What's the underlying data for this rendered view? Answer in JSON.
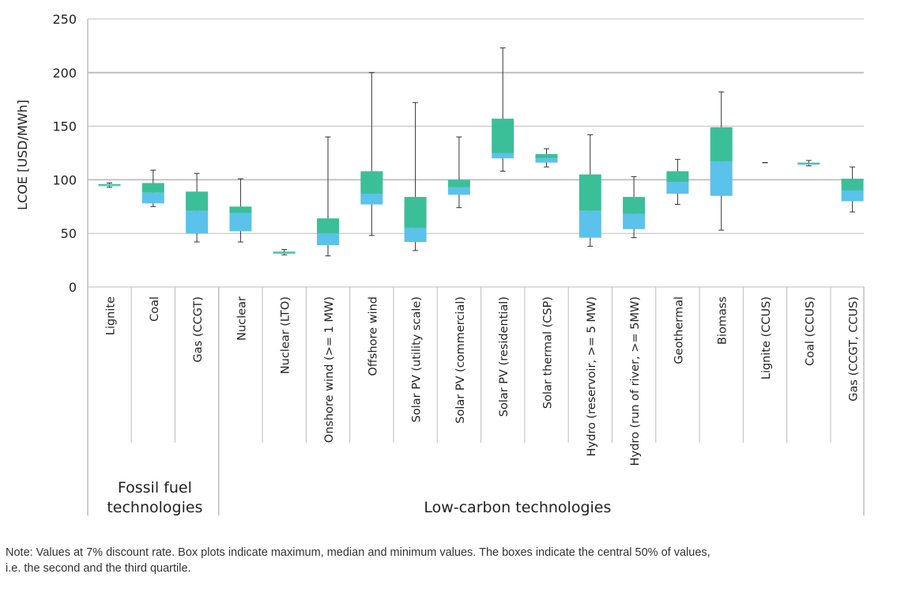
{
  "chart_data": {
    "type": "boxplot",
    "title": "",
    "ylabel": "LCOE [USD/MWh]",
    "xlabel": "",
    "ylim": [
      0,
      250
    ],
    "yticks": [
      0,
      50,
      100,
      150,
      200,
      250
    ],
    "grid": true,
    "categories": [
      "Lignite",
      "Coal",
      "Gas (CCGT)",
      "Nuclear",
      "Nuclear (LTO)",
      "Onshore wind (>= 1 MW)",
      "Offshore wind",
      "Solar PV (utility scale)",
      "Solar PV (commercial)",
      "Solar PV (residential)",
      "Solar thermal (CSP)",
      "Hydro (reservoir, >= 5 MW)",
      "Hydro (run of river, >= 5MW)",
      "Geothermal",
      "Biomass",
      "Lignite (CCUS)",
      "Coal (CCUS)",
      "Gas (CCGT, CCUS)"
    ],
    "series": [
      {
        "name": "Lignite",
        "min": 93,
        "q1": 94,
        "median": 95,
        "q3": 96,
        "max": 97
      },
      {
        "name": "Coal",
        "min": 75,
        "q1": 78,
        "median": 88,
        "q3": 97,
        "max": 109
      },
      {
        "name": "Gas (CCGT)",
        "min": 42,
        "q1": 50,
        "median": 71,
        "q3": 89,
        "max": 106
      },
      {
        "name": "Nuclear",
        "min": 42,
        "q1": 52,
        "median": 69,
        "q3": 75,
        "max": 101
      },
      {
        "name": "Nuclear (LTO)",
        "min": 30,
        "q1": 31,
        "median": 32,
        "q3": 33,
        "max": 35
      },
      {
        "name": "Onshore wind (>= 1 MW)",
        "min": 29,
        "q1": 39,
        "median": 50,
        "q3": 64,
        "max": 140
      },
      {
        "name": "Offshore wind",
        "min": 48,
        "q1": 77,
        "median": 87,
        "q3": 108,
        "max": 200
      },
      {
        "name": "Solar PV (utility scale)",
        "min": 34,
        "q1": 42,
        "median": 55,
        "q3": 84,
        "max": 172
      },
      {
        "name": "Solar PV (commercial)",
        "min": 74,
        "q1": 86,
        "median": 93,
        "q3": 100,
        "max": 140
      },
      {
        "name": "Solar PV (residential)",
        "min": 108,
        "q1": 120,
        "median": 125,
        "q3": 157,
        "max": 223
      },
      {
        "name": "Solar thermal (CSP)",
        "min": 112,
        "q1": 116,
        "median": 120,
        "q3": 124,
        "max": 129
      },
      {
        "name": "Hydro (reservoir, >= 5 MW)",
        "min": 38,
        "q1": 46,
        "median": 71,
        "q3": 105,
        "max": 142
      },
      {
        "name": "Hydro (run of river, >= 5MW)",
        "min": 46,
        "q1": 54,
        "median": 68,
        "q3": 84,
        "max": 103
      },
      {
        "name": "Geothermal",
        "min": 77,
        "q1": 87,
        "median": 98,
        "q3": 108,
        "max": 119
      },
      {
        "name": "Biomass",
        "min": 53,
        "q1": 85,
        "median": 117,
        "q3": 149,
        "max": 182
      },
      {
        "name": "Lignite (CCUS)",
        "min": 116,
        "q1": 116,
        "median": 116,
        "q3": 116,
        "max": 116
      },
      {
        "name": "Coal (CCUS)",
        "min": 113,
        "q1": 114,
        "median": 115,
        "q3": 116,
        "max": 118
      },
      {
        "name": "Gas (CCGT, CCUS)",
        "min": 70,
        "q1": 80,
        "median": 90,
        "q3": 101,
        "max": 112
      }
    ],
    "groups": [
      {
        "label_line1": "Fossil fuel",
        "label_line2": "technologies",
        "count": 3
      },
      {
        "label_line1": "Low-carbon technologies",
        "label_line2": "",
        "count": 15
      }
    ],
    "colors": {
      "upper_box": "#3bbf99",
      "lower_box": "#5bc2eb",
      "whisker": "#333333",
      "grid": "#bdbdbd"
    }
  },
  "note": {
    "line1": "Note: Values at 7% discount rate. Box plots indicate maximum, median and minimum values. The boxes indicate the central 50% of values,",
    "line2": "i.e. the second and the third quartile."
  }
}
